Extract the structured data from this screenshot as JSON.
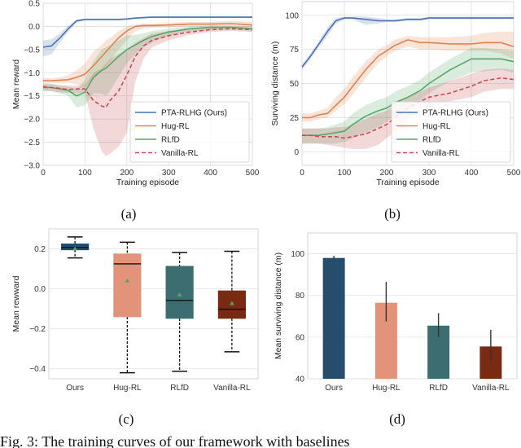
{
  "caption": "Fig. 3: The training curves of our framework with baselines",
  "subplot_labels": [
    "(a)",
    "(b)",
    "(c)",
    "(d)"
  ],
  "colors": {
    "PTA-RLHG (Ours)": "#4c72b0",
    "Hug-RL": "#dd8452",
    "RLfD": "#55a868",
    "Vanilla-RL": "#c44e52",
    "box_ours": "#264d6b",
    "box_hug": "#e2937a",
    "box_rlfd": "#3c6e71",
    "box_vanilla": "#7a2a12",
    "mean_marker": "#55a868"
  },
  "chart_data": [
    {
      "id": "a",
      "type": "line",
      "title": "",
      "xlabel": "Training episode",
      "ylabel": "Mean reward",
      "xlim": [
        0,
        500
      ],
      "ylim": [
        -3.0,
        0.5
      ],
      "xticks": [
        0,
        100,
        200,
        300,
        400,
        500
      ],
      "yticks": [
        -3.0,
        -2.5,
        -2.0,
        -1.5,
        -1.0,
        -0.5,
        0.0,
        0.5
      ],
      "ytick_labels": [
        "−3.0",
        "−2.5",
        "−2.0",
        "−1.5",
        "−1.0",
        "−0.5",
        "0.0",
        "0.5"
      ],
      "grid": true,
      "legend": "bottom-right",
      "x": [
        0,
        20,
        40,
        60,
        80,
        100,
        120,
        140,
        150,
        160,
        180,
        200,
        220,
        240,
        260,
        300,
        350,
        400,
        450,
        500
      ],
      "series": [
        {
          "name": "PTA-RLHG (Ours)",
          "style": "solid",
          "values": [
            -0.45,
            -0.42,
            -0.25,
            -0.05,
            0.12,
            0.15,
            0.15,
            0.15,
            0.15,
            0.15,
            0.15,
            0.16,
            0.18,
            0.19,
            0.2,
            0.2,
            0.2,
            0.2,
            0.2,
            0.2
          ],
          "lower": [
            -0.65,
            -0.6,
            -0.35,
            -0.12,
            0.08,
            0.13,
            0.13,
            0.13,
            0.13,
            0.13,
            0.13,
            0.14,
            0.16,
            0.17,
            0.18,
            0.18,
            0.18,
            0.18,
            0.18,
            0.18
          ],
          "upper": [
            -0.3,
            -0.28,
            -0.15,
            0.02,
            0.15,
            0.17,
            0.17,
            0.17,
            0.17,
            0.17,
            0.17,
            0.18,
            0.2,
            0.21,
            0.22,
            0.22,
            0.22,
            0.22,
            0.22,
            0.22
          ]
        },
        {
          "name": "Hug-RL",
          "style": "solid",
          "values": [
            -1.17,
            -1.17,
            -1.16,
            -1.15,
            -1.1,
            -1.03,
            -0.85,
            -0.65,
            -0.55,
            -0.45,
            -0.25,
            -0.1,
            0.0,
            0.02,
            0.02,
            0.03,
            0.05,
            0.05,
            0.06,
            0.03
          ],
          "lower": [
            -1.22,
            -1.22,
            -1.22,
            -1.22,
            -1.25,
            -1.3,
            -1.15,
            -0.95,
            -0.85,
            -0.75,
            -0.5,
            -0.3,
            -0.1,
            -0.05,
            -0.03,
            -0.02,
            0.0,
            0.0,
            0.0,
            -0.02
          ],
          "upper": [
            -1.12,
            -1.12,
            -1.1,
            -1.05,
            -0.95,
            -0.8,
            -0.55,
            -0.4,
            -0.3,
            -0.25,
            -0.1,
            0.0,
            0.05,
            0.06,
            0.06,
            0.07,
            0.1,
            0.1,
            0.12,
            0.1
          ]
        },
        {
          "name": "RLfD",
          "style": "solid",
          "values": [
            -1.32,
            -1.32,
            -1.35,
            -1.38,
            -1.5,
            -1.42,
            -1.1,
            -0.95,
            -0.9,
            -0.82,
            -0.65,
            -0.5,
            -0.4,
            -0.3,
            -0.22,
            -0.12,
            -0.05,
            -0.02,
            -0.02,
            -0.05
          ],
          "lower": [
            -1.4,
            -1.4,
            -1.45,
            -1.5,
            -1.75,
            -1.7,
            -1.45,
            -1.45,
            -1.5,
            -1.4,
            -1.1,
            -0.8,
            -0.6,
            -0.45,
            -0.35,
            -0.2,
            -0.1,
            -0.08,
            -0.07,
            -0.1
          ],
          "upper": [
            -1.25,
            -1.25,
            -1.28,
            -1.3,
            -1.35,
            -1.15,
            -0.75,
            -0.5,
            -0.45,
            -0.4,
            -0.3,
            -0.2,
            -0.18,
            -0.15,
            -0.1,
            -0.05,
            0.0,
            0.02,
            0.02,
            0.0
          ]
        },
        {
          "name": "Vanilla-RL",
          "style": "dashed",
          "values": [
            -1.3,
            -1.32,
            -1.34,
            -1.36,
            -1.35,
            -1.35,
            -1.6,
            -1.72,
            -1.75,
            -1.6,
            -1.4,
            -1.05,
            -0.65,
            -0.42,
            -0.3,
            -0.2,
            -0.12,
            -0.07,
            -0.05,
            -0.07
          ],
          "lower": [
            -1.38,
            -1.4,
            -1.42,
            -1.44,
            -1.44,
            -1.44,
            -2.2,
            -2.7,
            -2.8,
            -2.75,
            -2.6,
            -2.3,
            -1.2,
            -0.7,
            -0.45,
            -0.3,
            -0.18,
            -0.12,
            -0.1,
            -0.12
          ],
          "upper": [
            -1.22,
            -1.24,
            -1.27,
            -1.28,
            -1.28,
            -1.26,
            -1.0,
            -0.9,
            -0.8,
            -0.7,
            -0.6,
            -0.5,
            -0.35,
            -0.25,
            -0.15,
            -0.1,
            -0.06,
            -0.03,
            -0.01,
            -0.02
          ]
        }
      ]
    },
    {
      "id": "b",
      "type": "line",
      "title": "",
      "xlabel": "Training episode",
      "ylabel": "Surviving distance (m)",
      "xlim": [
        0,
        500
      ],
      "ylim": [
        -10,
        110
      ],
      "xticks": [
        0,
        100,
        200,
        300,
        400,
        500
      ],
      "yticks": [
        0,
        25,
        50,
        75,
        100
      ],
      "ytick_labels": [
        "0",
        "25",
        "50",
        "75",
        "100"
      ],
      "grid": true,
      "legend": "bottom-right",
      "x": [
        0,
        20,
        40,
        60,
        80,
        100,
        120,
        150,
        180,
        200,
        220,
        250,
        280,
        300,
        350,
        400,
        430,
        470,
        500
      ],
      "series": [
        {
          "name": "PTA-RLHG (Ours)",
          "style": "solid",
          "values": [
            62,
            70,
            79,
            88,
            96,
            98,
            98,
            97,
            96,
            96,
            96,
            97,
            97,
            98,
            98,
            98,
            98,
            98,
            98
          ],
          "lower": [
            60,
            68,
            77,
            85,
            94,
            97,
            97,
            93,
            94,
            95,
            95,
            96,
            96,
            97,
            97,
            97,
            97,
            97,
            97
          ],
          "upper": [
            64,
            72,
            81,
            91,
            98,
            99,
            99,
            99,
            98,
            97,
            97,
            98,
            98,
            99,
            99,
            99,
            99,
            99,
            99
          ],
          "legend_label": "PTA-RLHG (Ours)"
        },
        {
          "name": "Hug-RL",
          "style": "solid",
          "values": [
            25,
            25,
            27,
            28,
            34,
            40,
            48,
            60,
            70,
            74,
            78,
            82,
            80,
            80,
            79,
            79,
            80,
            80,
            77
          ],
          "lower": [
            22,
            22,
            24,
            25,
            30,
            35,
            42,
            54,
            65,
            70,
            74,
            77,
            75,
            75,
            74,
            74,
            74,
            72,
            68
          ],
          "upper": [
            28,
            28,
            30,
            32,
            40,
            46,
            55,
            66,
            75,
            78,
            82,
            85,
            84,
            84,
            84,
            85,
            87,
            88,
            88
          ]
        },
        {
          "name": "RLfD",
          "style": "solid",
          "values": [
            12,
            12,
            12,
            13,
            14,
            15,
            20,
            26,
            30,
            32,
            36,
            40,
            45,
            50,
            60,
            68,
            68,
            68,
            66
          ],
          "lower": [
            6,
            6,
            6,
            6,
            6,
            7,
            10,
            14,
            18,
            22,
            26,
            32,
            38,
            43,
            52,
            58,
            59,
            60,
            58
          ],
          "upper": [
            17,
            17,
            17,
            18,
            20,
            22,
            28,
            34,
            38,
            40,
            44,
            48,
            53,
            58,
            68,
            76,
            76,
            75,
            74
          ]
        },
        {
          "name": "Vanilla-RL",
          "style": "dashed",
          "values": [
            12,
            12,
            11,
            11,
            11,
            10,
            11,
            13,
            17,
            20,
            25,
            32,
            37,
            40,
            43,
            48,
            52,
            54,
            53
          ],
          "lower": [
            6,
            6,
            6,
            5,
            4,
            3,
            2,
            2,
            5,
            10,
            15,
            24,
            30,
            33,
            37,
            40,
            44,
            46,
            46
          ],
          "upper": [
            17,
            17,
            17,
            17,
            18,
            18,
            20,
            24,
            28,
            30,
            35,
            40,
            44,
            47,
            52,
            57,
            60,
            61,
            60
          ]
        }
      ]
    },
    {
      "id": "c",
      "type": "box",
      "title": "",
      "xlabel": "",
      "ylabel": "Mean rewward",
      "ylim": [
        -0.45,
        0.3
      ],
      "yticks": [
        -0.4,
        -0.2,
        0.0,
        0.2
      ],
      "ytick_labels": [
        "−0.4",
        "−0.2",
        "0.0",
        "0.2"
      ],
      "grid": true,
      "categories": [
        "Ours",
        "Hug-RL",
        "RLfD",
        "Vanilla-RL"
      ],
      "boxes": [
        {
          "whisker_low": 0.155,
          "q1": 0.195,
          "median": 0.207,
          "q3": 0.225,
          "whisker_high": 0.26,
          "mean": 0.2
        },
        {
          "whisker_low": -0.42,
          "q1": -0.14,
          "median": 0.125,
          "q3": 0.175,
          "whisker_high": 0.233,
          "mean": 0.04
        },
        {
          "whisker_low": -0.413,
          "q1": -0.148,
          "median": -0.058,
          "q3": 0.113,
          "whisker_high": 0.182,
          "mean": -0.03
        },
        {
          "whisker_low": -0.315,
          "q1": -0.148,
          "median": -0.102,
          "q3": -0.01,
          "whisker_high": 0.188,
          "mean": -0.073
        }
      ]
    },
    {
      "id": "d",
      "type": "bar",
      "title": "",
      "xlabel": "",
      "ylabel": "Mean surviving distance (m)",
      "ylim": [
        40,
        110
      ],
      "yticks": [
        40,
        60,
        80,
        100
      ],
      "ytick_labels": [
        "40",
        "60",
        "80",
        "100"
      ],
      "grid": true,
      "categories": [
        "Ours",
        "Hug-RL",
        "RLfD",
        "Vanilla-RL"
      ],
      "values": [
        98,
        76.5,
        65.5,
        55.5
      ],
      "error_low": [
        97.5,
        67.5,
        60,
        48
      ],
      "error_high": [
        99,
        86.5,
        71.5,
        63.5
      ]
    }
  ]
}
